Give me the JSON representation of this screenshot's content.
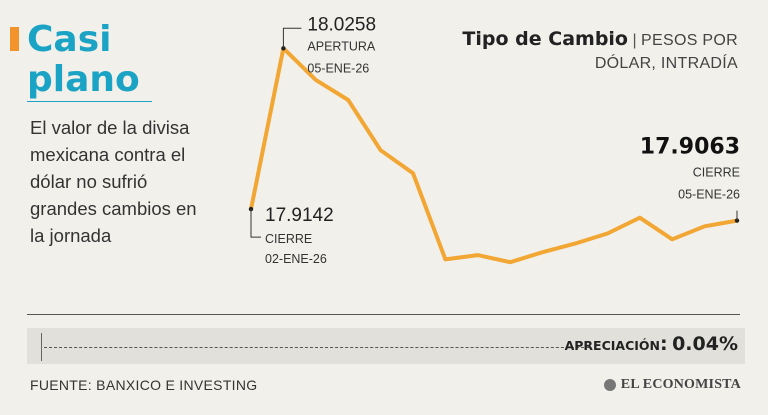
{
  "headline": {
    "line1": "Casi",
    "line2": "plano"
  },
  "description": "El valor de la divisa mexicana contra el dólar no sufrió grandes cambios en la jornada",
  "chart_title": {
    "strong": "Tipo de Cambio",
    "separator": "|",
    "rest": "PESOS POR",
    "rest2": "DÓLAR, INTRADÍA"
  },
  "chart_data": {
    "type": "line",
    "ylabel": "",
    "ylim": [
      17.85,
      18.045
    ],
    "series": [
      {
        "color": "#f2a634",
        "x": [
          0,
          1,
          2,
          3,
          4,
          5,
          6,
          7,
          8,
          9,
          10,
          11,
          12,
          13,
          14,
          15
        ],
        "y": [
          17.914,
          18.026,
          18.004,
          17.99,
          17.955,
          17.939,
          17.879,
          17.882,
          17.877,
          17.884,
          17.89,
          17.897,
          17.908,
          17.893,
          17.902,
          17.906
        ]
      }
    ],
    "annotations": [
      {
        "value": "17.9142",
        "lines": [
          "CIERRE",
          "02-ENE-26"
        ],
        "point_index": 0
      },
      {
        "value": "18.0258",
        "lines": [
          "APERTURA",
          "05-ENE-26"
        ],
        "point_index": 1
      },
      {
        "value": "17.9063",
        "lines": [
          "CIERRE",
          "05-ENE-26"
        ],
        "point_index": 15
      }
    ]
  },
  "appreciation": {
    "label": "APRECIACIÓN",
    "colon": ":",
    "value": "0.04%"
  },
  "source": "FUENTE: BANXICO E INVESTING",
  "brand": {
    "name": "EL ECONOMISTA",
    "icon": "globe-icon"
  },
  "colors": {
    "accent": "#f2932b",
    "headline": "#1aa3c4",
    "line": "#f2a634",
    "background": "#f2f0ea"
  }
}
